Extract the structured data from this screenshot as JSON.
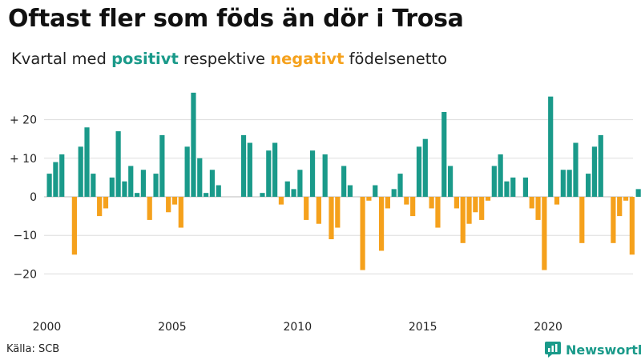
{
  "header": {
    "title": "Oftast fler som föds än dör i Trosa",
    "subtitle_prefix": "Kvartal med",
    "subtitle_positive": "positivt",
    "subtitle_middle": "respektive",
    "subtitle_negative": "negativt",
    "subtitle_suffix": "födelsenetto"
  },
  "footer": {
    "source": "Källa: SCB",
    "brand": "Newsworthy"
  },
  "colors": {
    "positive": "#1a9a8a",
    "negative": "#f5a11c",
    "grid": "#dddddd",
    "baseline": "#bbbbbb"
  },
  "chart_data": {
    "type": "bar",
    "title": "Oftast fler som föds än dör i Trosa",
    "xlabel": "",
    "ylabel": "",
    "ylim": [
      -28,
      28
    ],
    "yticks": [
      {
        "value": 20,
        "label": "+ 20"
      },
      {
        "value": 10,
        "label": "+ 10"
      },
      {
        "value": 0,
        "label": "0"
      },
      {
        "value": -10,
        "label": "−10"
      },
      {
        "value": -20,
        "label": "−20"
      }
    ],
    "xticks": [
      "2000",
      "2005",
      "2010",
      "2015",
      "2020"
    ],
    "start_year": 2000,
    "periods_per_year": 4,
    "grid": true,
    "values": [
      6,
      9,
      11,
      0,
      -15,
      13,
      18,
      6,
      -5,
      -3,
      5,
      17,
      4,
      8,
      1,
      7,
      -6,
      6,
      16,
      -4,
      -2,
      -8,
      13,
      27,
      10,
      1,
      7,
      3,
      0,
      0,
      0,
      16,
      14,
      0,
      1,
      12,
      14,
      -2,
      4,
      2,
      7,
      -6,
      12,
      -7,
      11,
      -11,
      -8,
      8,
      3,
      0,
      -19,
      -1,
      3,
      -14,
      -3,
      2,
      6,
      -2,
      -5,
      13,
      15,
      -3,
      -8,
      22,
      8,
      -3,
      -12,
      -7,
      -4,
      -6,
      -1,
      8,
      11,
      4,
      5,
      0,
      5,
      -3,
      -6,
      -19,
      26,
      -2,
      7,
      7,
      14,
      -12,
      6,
      13,
      16,
      0,
      -12,
      -5,
      -1,
      -15,
      2
    ]
  }
}
